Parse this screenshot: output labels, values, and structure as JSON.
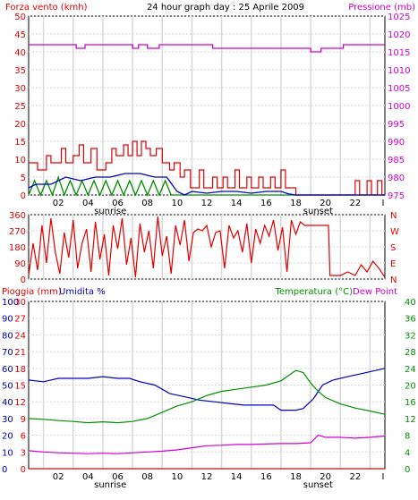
{
  "colors": {
    "wind": "#e00000",
    "gust": "#e00000",
    "avg": "#0000c0",
    "gust2": "#009000",
    "pressure": "#d000d0",
    "temp": "#009000",
    "dew": "#d000d0",
    "humidity": "#0000c0",
    "rain": "#e00000",
    "grid": "#d8d8d8"
  },
  "chart_data": [
    {
      "type": "line",
      "title": "24 hour graph day : 25 Aprile 2009",
      "left_axis_label": "Forza vento (kmh)",
      "right_axis_label": "Pressione (mb)",
      "left_ticks": [
        "0",
        "5",
        "10",
        "15",
        "20",
        "25",
        "30",
        "35",
        "40",
        "45",
        "50"
      ],
      "right_ticks": [
        "975",
        "980",
        "985",
        "990",
        "995",
        "1000",
        "1005",
        "1010",
        "1015",
        "1020",
        "1025"
      ],
      "x_ticks": [
        "02",
        "04",
        "06",
        "08",
        "10",
        "12",
        "14",
        "16",
        "18",
        "20",
        "22",
        "I"
      ],
      "markers": {
        "sunrise": "sunrise",
        "sunset": "sunset"
      },
      "ylim_left": [
        0,
        50
      ],
      "ylim_right": [
        975,
        1025
      ],
      "xlim": [
        0,
        24
      ],
      "pressure": [
        [
          0,
          1017
        ],
        [
          3.2,
          1017
        ],
        [
          3.2,
          1016
        ],
        [
          3.8,
          1016
        ],
        [
          3.8,
          1017
        ],
        [
          7,
          1017
        ],
        [
          7,
          1016
        ],
        [
          7.4,
          1016
        ],
        [
          7.4,
          1017
        ],
        [
          8,
          1017
        ],
        [
          8,
          1016
        ],
        [
          8.8,
          1016
        ],
        [
          8.8,
          1017
        ],
        [
          12.4,
          1017
        ],
        [
          12.4,
          1016
        ],
        [
          19,
          1016
        ],
        [
          19,
          1015
        ],
        [
          19.7,
          1015
        ],
        [
          19.7,
          1016
        ],
        [
          21.2,
          1016
        ],
        [
          21.2,
          1017
        ],
        [
          24,
          1017
        ]
      ],
      "gust": [
        [
          0,
          9
        ],
        [
          0.6,
          9
        ],
        [
          0.6,
          7
        ],
        [
          1.2,
          7
        ],
        [
          1.2,
          11
        ],
        [
          1.5,
          11
        ],
        [
          1.5,
          9
        ],
        [
          2.2,
          9
        ],
        [
          2.2,
          13
        ],
        [
          2.5,
          13
        ],
        [
          2.5,
          9
        ],
        [
          3,
          9
        ],
        [
          3,
          11
        ],
        [
          3.4,
          11
        ],
        [
          3.4,
          14
        ],
        [
          3.7,
          14
        ],
        [
          3.7,
          9
        ],
        [
          4.2,
          9
        ],
        [
          4.2,
          13
        ],
        [
          4.6,
          13
        ],
        [
          4.6,
          7
        ],
        [
          5.2,
          7
        ],
        [
          5.2,
          9
        ],
        [
          5.6,
          9
        ],
        [
          5.6,
          13
        ],
        [
          5.9,
          13
        ],
        [
          5.9,
          11
        ],
        [
          6.4,
          11
        ],
        [
          6.4,
          14
        ],
        [
          6.7,
          14
        ],
        [
          6.7,
          11
        ],
        [
          7,
          11
        ],
        [
          7,
          15
        ],
        [
          7.3,
          15
        ],
        [
          7.3,
          11
        ],
        [
          7.6,
          11
        ],
        [
          7.6,
          15
        ],
        [
          7.9,
          15
        ],
        [
          7.9,
          13
        ],
        [
          8.2,
          13
        ],
        [
          8.2,
          11
        ],
        [
          8.6,
          11
        ],
        [
          8.6,
          13
        ],
        [
          9,
          13
        ],
        [
          9,
          9
        ],
        [
          9.5,
          9
        ],
        [
          9.5,
          7
        ],
        [
          9.8,
          7
        ],
        [
          9.8,
          9
        ],
        [
          10.2,
          9
        ],
        [
          10.2,
          5
        ],
        [
          10.5,
          5
        ],
        [
          10.5,
          7
        ],
        [
          10.9,
          7
        ],
        [
          10.9,
          2
        ],
        [
          11.5,
          2
        ],
        [
          11.5,
          7
        ],
        [
          11.8,
          7
        ],
        [
          11.8,
          2
        ],
        [
          12.4,
          2
        ],
        [
          12.4,
          5
        ],
        [
          12.7,
          5
        ],
        [
          12.7,
          2
        ],
        [
          13.1,
          2
        ],
        [
          13.1,
          5
        ],
        [
          13.4,
          5
        ],
        [
          13.4,
          2
        ],
        [
          13.9,
          2
        ],
        [
          13.9,
          7
        ],
        [
          14.2,
          7
        ],
        [
          14.2,
          2
        ],
        [
          14.7,
          2
        ],
        [
          14.7,
          5
        ],
        [
          15,
          5
        ],
        [
          15,
          2
        ],
        [
          15.5,
          2
        ],
        [
          15.5,
          5
        ],
        [
          15.8,
          5
        ],
        [
          15.8,
          2
        ],
        [
          16.3,
          2
        ],
        [
          16.3,
          5
        ],
        [
          16.6,
          5
        ],
        [
          16.6,
          2
        ],
        [
          17,
          2
        ],
        [
          17,
          7
        ],
        [
          17.3,
          7
        ],
        [
          17.3,
          2
        ],
        [
          18,
          2
        ],
        [
          18,
          0
        ],
        [
          22,
          0
        ],
        [
          22,
          4
        ],
        [
          22.3,
          4
        ],
        [
          22.3,
          0
        ],
        [
          22.8,
          0
        ],
        [
          22.8,
          4
        ],
        [
          23.1,
          4
        ],
        [
          23.1,
          0
        ],
        [
          23.5,
          0
        ],
        [
          23.5,
          4
        ],
        [
          23.8,
          4
        ],
        [
          23.8,
          0
        ],
        [
          24,
          0
        ]
      ],
      "avg": [
        [
          0,
          2
        ],
        [
          0.5,
          3
        ],
        [
          1.5,
          3
        ],
        [
          2.5,
          5
        ],
        [
          3.5,
          4
        ],
        [
          4.5,
          5
        ],
        [
          5.5,
          5
        ],
        [
          6.5,
          6
        ],
        [
          7.5,
          6
        ],
        [
          8.5,
          5
        ],
        [
          9.3,
          5
        ],
        [
          10,
          1
        ],
        [
          10.5,
          0
        ],
        [
          11,
          1
        ],
        [
          12,
          0.5
        ],
        [
          13,
          1
        ],
        [
          14,
          1
        ],
        [
          15,
          0.5
        ],
        [
          16,
          1
        ],
        [
          17,
          1
        ],
        [
          17.5,
          0.3
        ],
        [
          18,
          0
        ],
        [
          24,
          0
        ]
      ],
      "green": [
        [
          0,
          0
        ],
        [
          0.4,
          4
        ],
        [
          0.8,
          0
        ],
        [
          1.2,
          4
        ],
        [
          1.6,
          0
        ],
        [
          2,
          5
        ],
        [
          2.4,
          0
        ],
        [
          2.8,
          4
        ],
        [
          3.2,
          0
        ],
        [
          3.6,
          4
        ],
        [
          4,
          0
        ],
        [
          4.4,
          4
        ],
        [
          4.8,
          0
        ],
        [
          5.2,
          4
        ],
        [
          5.6,
          0
        ],
        [
          6,
          4
        ],
        [
          6.4,
          0
        ],
        [
          6.8,
          4
        ],
        [
          7.2,
          0
        ],
        [
          7.6,
          4
        ],
        [
          8,
          0
        ],
        [
          8.4,
          4
        ],
        [
          8.8,
          0
        ],
        [
          9.2,
          4
        ],
        [
          9.6,
          0
        ],
        [
          10,
          0
        ],
        [
          24,
          0
        ]
      ]
    },
    {
      "type": "line",
      "left_ticks": [
        "0",
        "90",
        "180",
        "270",
        "360"
      ],
      "right_labels": [
        "N",
        "W",
        "S",
        "E",
        "N"
      ],
      "ylim": [
        0,
        360
      ],
      "xlim": [
        0,
        24
      ],
      "direction": [
        [
          0,
          20
        ],
        [
          0.3,
          200
        ],
        [
          0.6,
          50
        ],
        [
          0.9,
          300
        ],
        [
          1.2,
          90
        ],
        [
          1.5,
          340
        ],
        [
          1.8,
          150
        ],
        [
          2.1,
          30
        ],
        [
          2.4,
          260
        ],
        [
          2.7,
          120
        ],
        [
          3,
          330
        ],
        [
          3.3,
          60
        ],
        [
          3.6,
          200
        ],
        [
          3.9,
          280
        ],
        [
          4.2,
          40
        ],
        [
          4.5,
          320
        ],
        [
          4.8,
          110
        ],
        [
          5.1,
          250
        ],
        [
          5.4,
          20
        ],
        [
          5.7,
          300
        ],
        [
          6,
          170
        ],
        [
          6.3,
          340
        ],
        [
          6.6,
          80
        ],
        [
          6.9,
          230
        ],
        [
          7.2,
          10
        ],
        [
          7.5,
          310
        ],
        [
          7.8,
          150
        ],
        [
          8.1,
          270
        ],
        [
          8.4,
          60
        ],
        [
          8.7,
          350
        ],
        [
          9,
          130
        ],
        [
          9.3,
          240
        ],
        [
          9.6,
          30
        ],
        [
          9.9,
          300
        ],
        [
          10.2,
          190
        ],
        [
          10.5,
          330
        ],
        [
          10.8,
          100
        ],
        [
          11.1,
          260
        ],
        [
          11.4,
          280
        ],
        [
          11.7,
          270
        ],
        [
          12,
          300
        ],
        [
          12.3,
          180
        ],
        [
          12.6,
          260
        ],
        [
          12.9,
          270
        ],
        [
          13.2,
          60
        ],
        [
          13.5,
          300
        ],
        [
          13.8,
          230
        ],
        [
          14.1,
          270
        ],
        [
          14.4,
          150
        ],
        [
          14.7,
          310
        ],
        [
          15,
          90
        ],
        [
          15.3,
          280
        ],
        [
          15.6,
          200
        ],
        [
          15.9,
          300
        ],
        [
          16.2,
          240
        ],
        [
          16.5,
          330
        ],
        [
          16.8,
          160
        ],
        [
          17.1,
          290
        ],
        [
          17.4,
          40
        ],
        [
          17.7,
          330
        ],
        [
          18,
          250
        ],
        [
          18.3,
          320
        ],
        [
          18.6,
          300
        ],
        [
          19,
          300
        ],
        [
          19.6,
          300
        ],
        [
          20.2,
          300
        ],
        [
          20.3,
          20
        ],
        [
          21,
          20
        ],
        [
          21.5,
          40
        ],
        [
          22,
          20
        ],
        [
          22.4,
          80
        ],
        [
          22.8,
          40
        ],
        [
          23.2,
          100
        ],
        [
          23.6,
          60
        ],
        [
          24,
          10
        ]
      ]
    },
    {
      "type": "line",
      "left_label_rain": "Pioggia (mm)",
      "left_label_humidity": "Umidita %",
      "right_label_temp": "Temperatura (°C)",
      "right_label_dew": "Dew Point",
      "rain_ticks": [
        "0",
        "3",
        "6",
        "9",
        "12",
        "15",
        "18",
        "21",
        "24",
        "27",
        "30"
      ],
      "humidity_ticks": [
        "0",
        "10",
        "20",
        "30",
        "40",
        "50",
        "60",
        "70",
        "80",
        "90",
        "100"
      ],
      "temp_ticks": [
        "0",
        "4",
        "8",
        "12",
        "16",
        "20",
        "24",
        "28",
        "32",
        "36",
        "40"
      ],
      "x_ticks": [
        "02",
        "04",
        "06",
        "08",
        "10",
        "12",
        "14",
        "16",
        "18",
        "20",
        "22",
        "I"
      ],
      "markers": {
        "sunrise": "sunrise",
        "sunset": "sunset"
      },
      "xlim": [
        0,
        24
      ],
      "humidity": [
        [
          0,
          53
        ],
        [
          1,
          52
        ],
        [
          2,
          54
        ],
        [
          3,
          54
        ],
        [
          4,
          54
        ],
        [
          5,
          55
        ],
        [
          6,
          54
        ],
        [
          6.8,
          54
        ],
        [
          7.5,
          52
        ],
        [
          8.5,
          50
        ],
        [
          9.5,
          45
        ],
        [
          10.5,
          43
        ],
        [
          11.5,
          41
        ],
        [
          12.5,
          40
        ],
        [
          13.5,
          39
        ],
        [
          14.5,
          38
        ],
        [
          15.5,
          38
        ],
        [
          16.5,
          38
        ],
        [
          17,
          35
        ],
        [
          18,
          35
        ],
        [
          18.5,
          36
        ],
        [
          19.2,
          42
        ],
        [
          19.8,
          50
        ],
        [
          20.5,
          53
        ],
        [
          21.5,
          55
        ],
        [
          22.5,
          57
        ],
        [
          23.5,
          59
        ],
        [
          24,
          60
        ]
      ],
      "temperature": [
        [
          0,
          12
        ],
        [
          1,
          11.8
        ],
        [
          2,
          11.5
        ],
        [
          3,
          11.3
        ],
        [
          4,
          11.0
        ],
        [
          5,
          11.2
        ],
        [
          6,
          11.0
        ],
        [
          7,
          11.3
        ],
        [
          8,
          12.0
        ],
        [
          9,
          13.5
        ],
        [
          10,
          15.0
        ],
        [
          11,
          16.0
        ],
        [
          12,
          17.5
        ],
        [
          13,
          18.5
        ],
        [
          14,
          19.0
        ],
        [
          15,
          19.5
        ],
        [
          16,
          20.0
        ],
        [
          17,
          21.0
        ],
        [
          18,
          23.5
        ],
        [
          18.5,
          23.0
        ],
        [
          19,
          20.5
        ],
        [
          19.5,
          18.5
        ],
        [
          20,
          17.0
        ],
        [
          21,
          15.5
        ],
        [
          22,
          14.5
        ],
        [
          23,
          13.8
        ],
        [
          24,
          13.0
        ]
      ],
      "dew": [
        [
          0,
          4.3
        ],
        [
          1,
          4.0
        ],
        [
          2,
          3.8
        ],
        [
          3,
          3.7
        ],
        [
          4,
          3.6
        ],
        [
          5,
          3.7
        ],
        [
          6,
          3.6
        ],
        [
          7,
          3.8
        ],
        [
          8,
          4.0
        ],
        [
          9,
          4.2
        ],
        [
          10,
          4.5
        ],
        [
          11,
          5.0
        ],
        [
          12,
          5.5
        ],
        [
          13,
          5.6
        ],
        [
          14,
          5.8
        ],
        [
          15,
          5.8
        ],
        [
          16,
          5.9
        ],
        [
          17,
          6.0
        ],
        [
          18,
          6.0
        ],
        [
          19,
          6.2
        ],
        [
          19.5,
          8.0
        ],
        [
          20,
          7.5
        ],
        [
          21,
          7.5
        ],
        [
          22,
          7.3
        ],
        [
          23,
          7.5
        ],
        [
          24,
          7.8
        ]
      ],
      "rain": [
        [
          0,
          0
        ],
        [
          24,
          0
        ]
      ]
    }
  ]
}
